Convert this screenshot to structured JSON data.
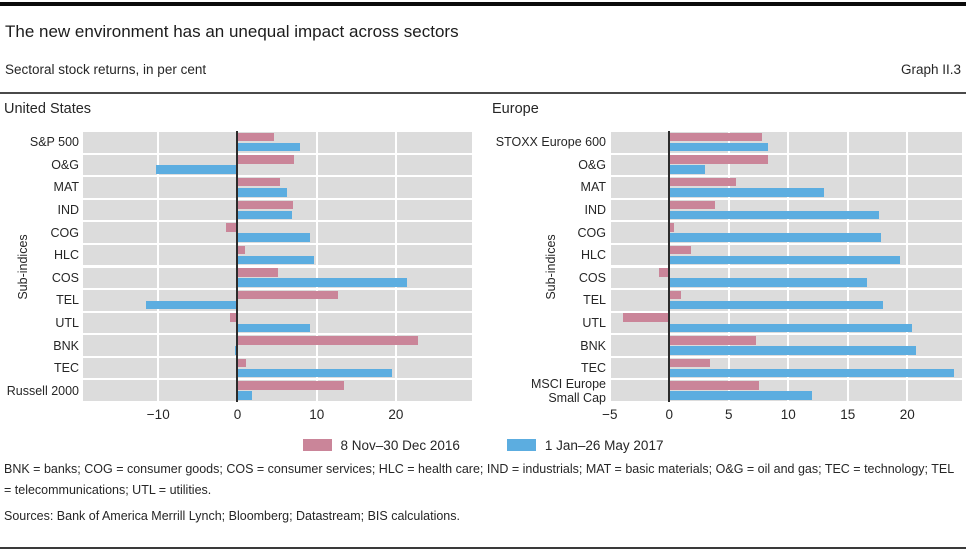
{
  "page": {
    "title": "The new environment has an unequal impact across sectors",
    "subtitle": "Sectoral stock returns, in per cent",
    "graph_label": "Graph II.3"
  },
  "legend": [
    {
      "label": "8 Nov–30 Dec 2016",
      "color": "#ca8599"
    },
    {
      "label": "1 Jan–26 May 2017",
      "color": "#5cade0"
    }
  ],
  "colors": {
    "bar_pink": "#ca8599",
    "bar_blue": "#5cade0",
    "plot_background": "#dcdcdc",
    "zero_line": "#2b2b2b"
  },
  "footnotes": {
    "definitions": "BNK = banks; COG = consumer goods; COS = consumer services; HLC = health care; IND = industrials; MAT = basic materials; O&G = oil and gas; TEC = technology; TEL = telecommunications; UTL = utilities.",
    "sources": "Sources: Bank of America Merrill Lynch; Bloomberg; Datastream; BIS calculations."
  },
  "chart_data": [
    {
      "type": "bar",
      "orientation": "horizontal",
      "title": "United States",
      "ylabel": "Sub-indices",
      "grid": true,
      "legend_position": "bottom",
      "categories": [
        "S&P 500",
        "O&G",
        "MAT",
        "IND",
        "COG",
        "HLC",
        "COS",
        "TEL",
        "UTL",
        "BNK",
        "TEC",
        "Russell 2000"
      ],
      "series": [
        {
          "name": "8 Nov–30 Dec 2016",
          "color": "#ca8599",
          "values": [
            4.6,
            7.1,
            5.4,
            7.0,
            -1.5,
            1.0,
            5.1,
            12.7,
            -1.0,
            22.8,
            1.1,
            13.5
          ]
        },
        {
          "name": "1 Jan–26 May 2017",
          "color": "#5cade0",
          "values": [
            7.9,
            -10.3,
            6.2,
            6.9,
            9.1,
            9.7,
            21.4,
            -11.5,
            9.2,
            -0.3,
            19.5,
            1.8
          ]
        }
      ],
      "xlim": [
        -19.5,
        29.6
      ],
      "xticks": [
        -10,
        0,
        10,
        20
      ]
    },
    {
      "type": "bar",
      "orientation": "horizontal",
      "title": "Europe",
      "ylabel": "Sub-indices",
      "grid": true,
      "legend_position": "bottom",
      "categories": [
        "STOXX Europe 600",
        "O&G",
        "MAT",
        "IND",
        "COG",
        "HLC",
        "COS",
        "TEL",
        "UTL",
        "BNK",
        "TEC",
        "MSCI Europe\nSmall Cap"
      ],
      "series": [
        {
          "name": "8 Nov–30 Dec 2016",
          "color": "#ca8599",
          "values": [
            7.8,
            8.3,
            5.6,
            3.8,
            0.4,
            1.8,
            -0.9,
            1.0,
            -3.9,
            7.3,
            3.4,
            7.5
          ]
        },
        {
          "name": "1 Jan–26 May 2017",
          "color": "#5cade0",
          "values": [
            8.3,
            3.0,
            13.0,
            17.6,
            17.8,
            19.4,
            16.6,
            18.0,
            20.4,
            20.7,
            23.9,
            12.0
          ]
        }
      ],
      "xlim": [
        -4.9,
        24.6
      ],
      "xticks": [
        -5,
        0,
        5,
        10,
        15,
        20
      ]
    }
  ]
}
